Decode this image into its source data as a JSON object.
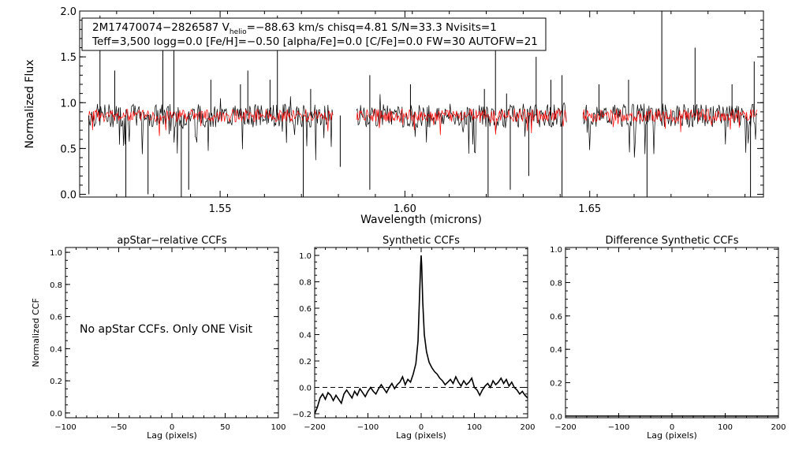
{
  "chart_data": [
    {
      "type": "line",
      "id": "spectrum",
      "xlabel": "Wavelength (microns)",
      "ylabel": "Normalized Flux",
      "xlim": [
        1.512,
        1.697
      ],
      "ylim": [
        -0.03,
        2.0
      ],
      "xticks": [
        1.55,
        1.6,
        1.65
      ],
      "xtick_labels": [
        "1.55",
        "1.60",
        "1.65"
      ],
      "yticks": [
        0.0,
        0.5,
        1.0,
        1.5,
        2.0
      ],
      "ytick_labels": [
        "0.0",
        "0.5",
        "1.0",
        "1.5",
        "2.0"
      ],
      "chips": [
        [
          1.5144,
          1.5805
        ],
        [
          1.5869,
          1.6437
        ],
        [
          1.6482,
          1.6953
        ]
      ],
      "series": [
        {
          "name": "observed",
          "color": "#000000",
          "base": 0.86,
          "noise": 0.13,
          "seed": 7
        },
        {
          "name": "synthetic",
          "color": "#ff0000",
          "base": 0.86,
          "noise": 0.07,
          "seed": 23
        }
      ],
      "spikes": [
        {
          "x": 1.5175,
          "y": 1.95
        },
        {
          "x": 1.5215,
          "y": 1.35
        },
        {
          "x": 1.5345,
          "y": 1.7
        },
        {
          "x": 1.5375,
          "y": 1.75
        },
        {
          "x": 1.5475,
          "y": 1.25
        },
        {
          "x": 1.5555,
          "y": 1.2
        },
        {
          "x": 1.5575,
          "y": 1.35
        },
        {
          "x": 1.5635,
          "y": 1.25
        },
        {
          "x": 1.5655,
          "y": 1.95
        },
        {
          "x": 1.5745,
          "y": 1.15
        },
        {
          "x": 1.5905,
          "y": 1.3
        },
        {
          "x": 1.6015,
          "y": 1.2
        },
        {
          "x": 1.6215,
          "y": 1.15
        },
        {
          "x": 1.6245,
          "y": 1.7
        },
        {
          "x": 1.6275,
          "y": 1.1
        },
        {
          "x": 1.6355,
          "y": 1.5
        },
        {
          "x": 1.6395,
          "y": 1.25
        },
        {
          "x": 1.6425,
          "y": 1.3
        },
        {
          "x": 1.6525,
          "y": 1.2
        },
        {
          "x": 1.6605,
          "y": 1.25
        },
        {
          "x": 1.6695,
          "y": 2.0
        },
        {
          "x": 1.6785,
          "y": 1.6
        },
        {
          "x": 1.6885,
          "y": 1.2
        },
        {
          "x": 1.6945,
          "y": 1.45
        }
      ],
      "dips": [
        {
          "x": 1.5145,
          "y": 0.0
        },
        {
          "x": 1.5245,
          "y": -0.03
        },
        {
          "x": 1.5305,
          "y": 0.0
        },
        {
          "x": 1.5395,
          "y": -0.03
        },
        {
          "x": 1.5415,
          "y": 0.05
        },
        {
          "x": 1.5725,
          "y": -0.03
        },
        {
          "x": 1.5825,
          "y": 0.3
        },
        {
          "x": 1.5905,
          "y": 0.05
        },
        {
          "x": 1.6225,
          "y": -0.03
        },
        {
          "x": 1.6285,
          "y": 0.05
        },
        {
          "x": 1.6335,
          "y": 0.2
        },
        {
          "x": 1.6425,
          "y": -0.03
        },
        {
          "x": 1.6655,
          "y": -0.03
        },
        {
          "x": 1.6935,
          "y": -0.03
        }
      ]
    },
    {
      "type": "line",
      "id": "apstar",
      "title": "apStar−relative CCFs",
      "xlabel": "Lag (pixels)",
      "ylabel": "Normalized CCF",
      "xlim": [
        -100,
        100
      ],
      "ylim": [
        -0.03,
        1.03
      ],
      "xticks": [
        -100,
        -50,
        0,
        50,
        100
      ],
      "xtick_labels": [
        "−100",
        "−50",
        "0",
        "50",
        "100"
      ],
      "yticks": [
        0.0,
        0.2,
        0.4,
        0.6,
        0.8,
        1.0
      ],
      "ytick_labels": [
        "0.0",
        "0.2",
        "0.4",
        "0.6",
        "0.8",
        "1.0"
      ],
      "annotation": "No apStar CCFs.  Only ONE Visit"
    },
    {
      "type": "line",
      "id": "synthetic",
      "title": "Synthetic CCFs",
      "xlabel": "Lag (pixels)",
      "xlim": [
        -200,
        200
      ],
      "ylim": [
        -0.23,
        1.06
      ],
      "xticks": [
        -200,
        -100,
        0,
        100,
        200
      ],
      "xtick_labels": [
        "−200",
        "−100",
        "0",
        "100",
        "200"
      ],
      "yticks": [
        -0.2,
        0.0,
        0.2,
        0.4,
        0.6,
        0.8,
        1.0
      ],
      "ytick_labels": [
        "−0.2",
        "0.0",
        "0.2",
        "0.4",
        "0.6",
        "0.8",
        "1.0"
      ],
      "reference_line_y": 0.0,
      "series": [
        {
          "name": "ccf",
          "x": [
            -200,
            -195,
            -190,
            -185,
            -180,
            -175,
            -170,
            -165,
            -160,
            -155,
            -150,
            -145,
            -140,
            -135,
            -130,
            -125,
            -120,
            -115,
            -110,
            -105,
            -100,
            -95,
            -90,
            -85,
            -80,
            -75,
            -70,
            -65,
            -60,
            -55,
            -50,
            -45,
            -40,
            -35,
            -30,
            -25,
            -20,
            -15,
            -10,
            -6,
            -3,
            -1,
            0,
            1,
            3,
            6,
            10,
            15,
            20,
            25,
            30,
            35,
            40,
            45,
            50,
            55,
            60,
            65,
            70,
            75,
            80,
            85,
            90,
            95,
            100,
            105,
            110,
            115,
            120,
            125,
            130,
            135,
            140,
            145,
            150,
            155,
            160,
            165,
            170,
            175,
            180,
            185,
            190,
            195,
            200
          ],
          "y": [
            -0.2,
            -0.15,
            -0.08,
            -0.05,
            -0.09,
            -0.04,
            -0.06,
            -0.1,
            -0.06,
            -0.09,
            -0.12,
            -0.05,
            -0.02,
            -0.05,
            -0.08,
            -0.03,
            -0.06,
            -0.01,
            -0.04,
            -0.07,
            -0.03,
            0.0,
            -0.03,
            -0.05,
            -0.01,
            0.02,
            -0.01,
            -0.04,
            0.0,
            0.03,
            -0.01,
            0.02,
            0.04,
            0.08,
            0.02,
            0.06,
            0.04,
            0.1,
            0.18,
            0.35,
            0.7,
            0.92,
            1.0,
            0.92,
            0.65,
            0.4,
            0.27,
            0.19,
            0.15,
            0.12,
            0.1,
            0.07,
            0.05,
            0.02,
            0.04,
            0.06,
            0.03,
            0.08,
            0.04,
            0.01,
            0.05,
            0.02,
            0.04,
            0.07,
            0.0,
            -0.02,
            -0.06,
            -0.02,
            0.01,
            0.03,
            0.0,
            0.05,
            0.02,
            0.04,
            0.07,
            0.03,
            0.06,
            0.01,
            0.04,
            0.0,
            -0.02,
            -0.05,
            -0.03,
            -0.06,
            -0.08
          ]
        }
      ]
    },
    {
      "type": "line",
      "id": "difference",
      "title": "Difference Synthetic CCFs",
      "xlabel": "Lag (pixels)",
      "xlim": [
        -200,
        200
      ],
      "ylim": [
        -0.01,
        1.01
      ],
      "xticks": [
        -200,
        -100,
        0,
        100,
        200
      ],
      "xtick_labels": [
        "−200",
        "−100",
        "0",
        "100",
        "200"
      ],
      "yticks": [
        0.0,
        0.2,
        0.4,
        0.6,
        0.8,
        1.0
      ],
      "ytick_labels": [
        "0.0",
        "0.2",
        "0.4",
        "0.6",
        "0.8",
        "1.0"
      ],
      "series": [
        {
          "name": "diff",
          "x": [
            -200,
            200
          ],
          "y": [
            0.0,
            0.0
          ]
        }
      ]
    }
  ],
  "info": {
    "line1_part1": "2M17470074−2826587  V",
    "line1_sub": "helio",
    "line1_part2": "=−88.63 km/s  chisq=4.81  S/N=33.3  Nvisits=1",
    "line2": "Teff=3,500 logg=0.0 [Fe/H]=−0.50 [alpha/Fe]=0.0 [C/Fe]=0.0 FW=30 AUTOFW=21"
  }
}
